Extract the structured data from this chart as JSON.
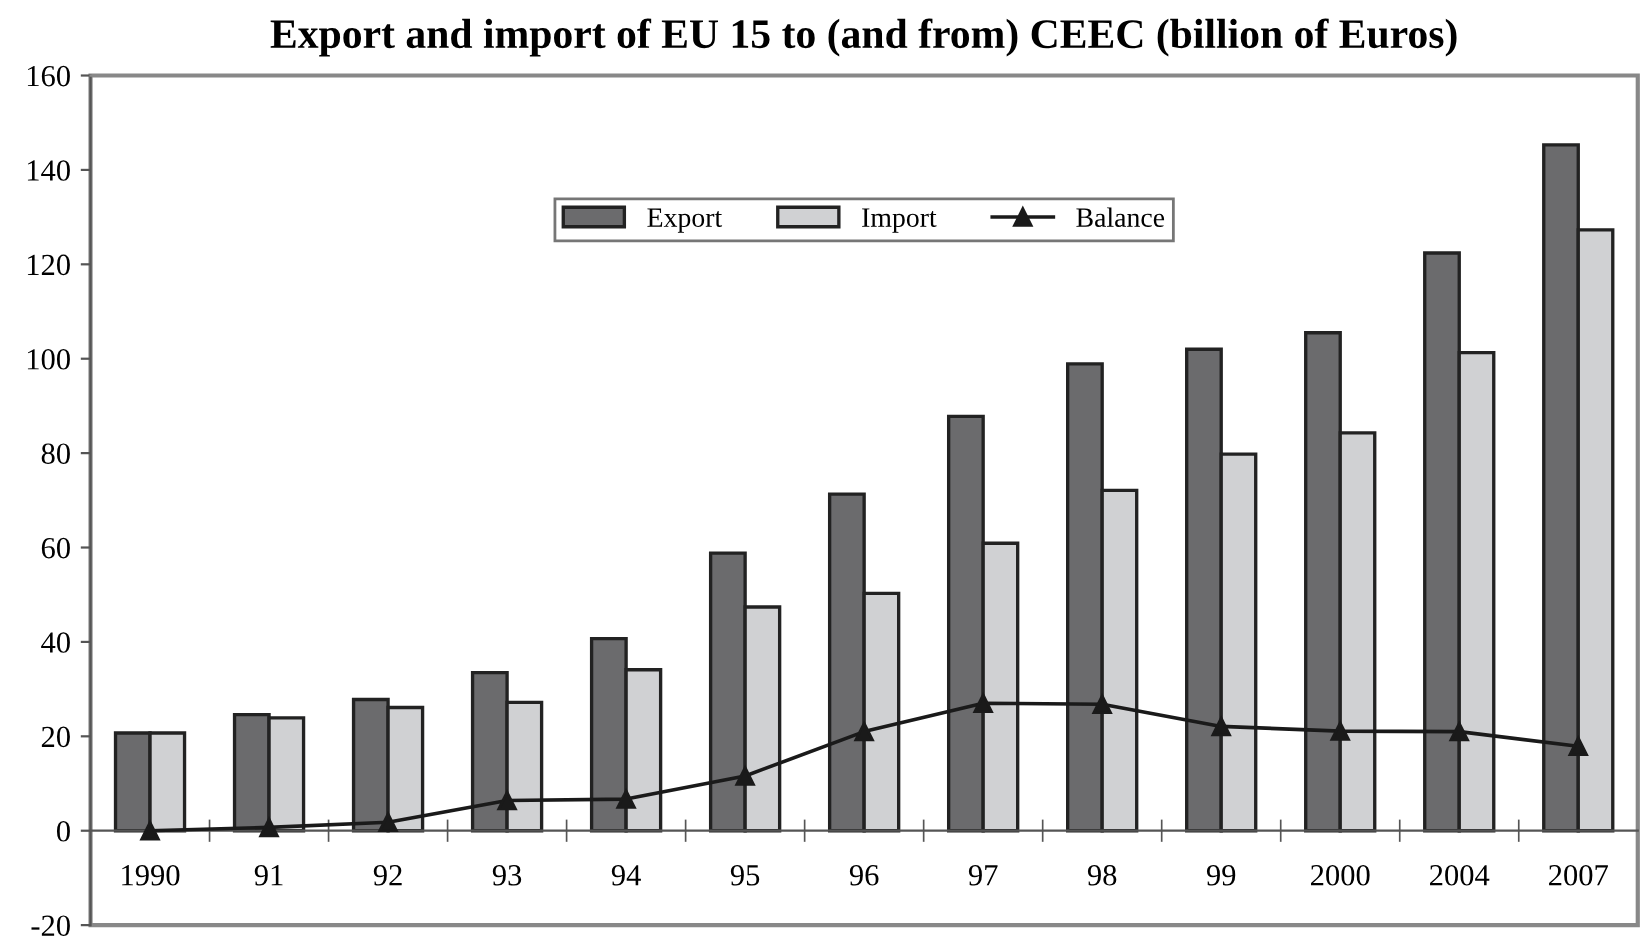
{
  "chart_data": {
    "type": "bar",
    "title": "Export and import of EU 15 to (and from) CEEC (billion of Euros)",
    "categories": [
      "1990",
      "91",
      "92",
      "93",
      "94",
      "95",
      "96",
      "97",
      "98",
      "99",
      "2000",
      "2004",
      "2007"
    ],
    "series": [
      {
        "name": "Export",
        "color": "#6b6b6d",
        "values": [
          20.7,
          24.6,
          27.8,
          33.5,
          40.7,
          58.8,
          71.3,
          87.8,
          98.9,
          102.0,
          105.5,
          122.4,
          145.3
        ]
      },
      {
        "name": "Import",
        "color": "#d0d1d3",
        "values": [
          20.7,
          23.9,
          26.1,
          27.2,
          34.1,
          47.4,
          50.3,
          60.9,
          72.1,
          79.8,
          84.3,
          101.3,
          127.3
        ]
      },
      {
        "name": "Balance",
        "type": "line",
        "color": "#1a1a1a",
        "marker": "triangle",
        "values": [
          0,
          0.7,
          1.8,
          6.4,
          6.7,
          11.6,
          21.0,
          27.0,
          26.8,
          22.1,
          21.1,
          21.0,
          17.9
        ]
      }
    ],
    "ylim": [
      -20,
      160
    ],
    "yticks": [
      -20,
      0,
      20,
      40,
      60,
      80,
      100,
      120,
      140,
      160
    ],
    "grid": false,
    "legend": "top"
  }
}
